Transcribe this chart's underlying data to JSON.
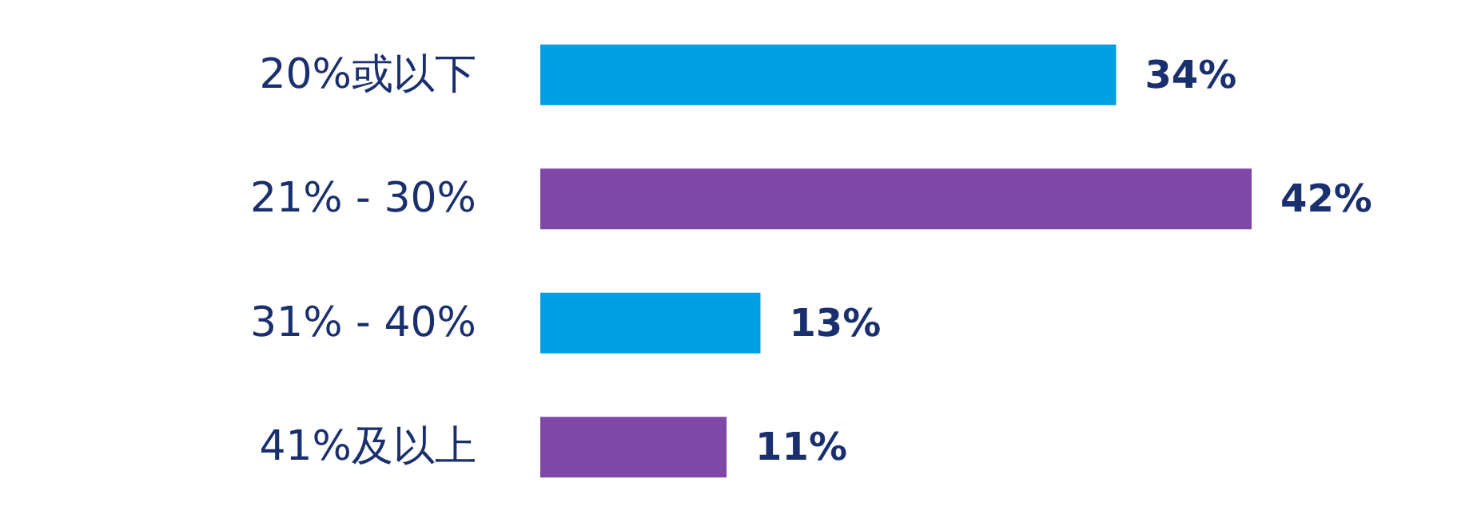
{
  "chart_data": {
    "type": "bar",
    "orientation": "horizontal",
    "categories": [
      "20%或以下",
      "21% - 30%",
      "31% - 40%",
      "41%及以上"
    ],
    "values": [
      34,
      42,
      13,
      11
    ],
    "colors": [
      "#009fe3",
      "#7e47a8",
      "#009fe3",
      "#7e47a8"
    ],
    "value_labels": [
      "34%",
      "42%",
      "13%",
      "11%"
    ]
  }
}
